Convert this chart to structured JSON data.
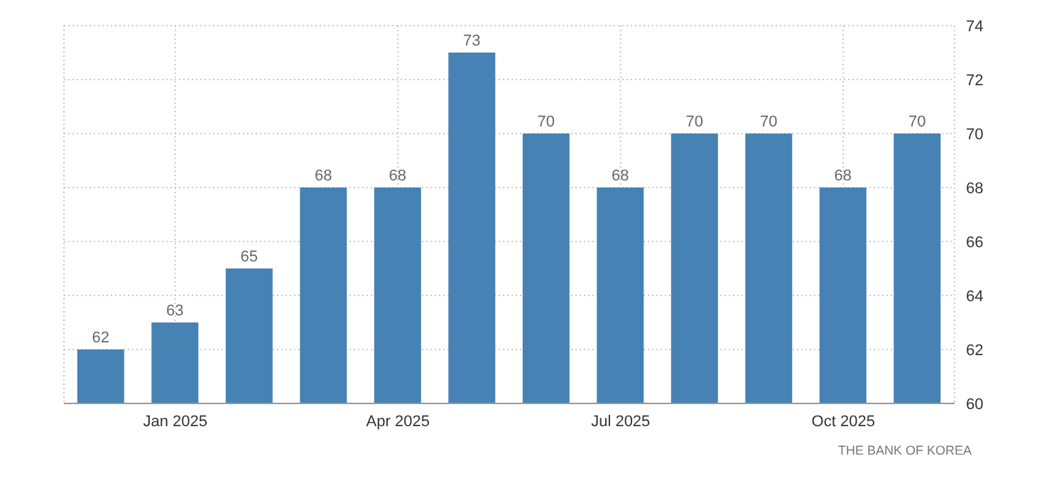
{
  "chart_data": {
    "type": "bar",
    "categories": [
      null,
      "Jan 2025",
      null,
      null,
      "Apr 2025",
      null,
      null,
      "Jul 2025",
      null,
      null,
      "Oct 2025",
      null
    ],
    "values": [
      62,
      63,
      65,
      68,
      68,
      73,
      70,
      68,
      70,
      70,
      68,
      70
    ],
    "color": "#4682b4",
    "ylim": [
      60,
      74
    ],
    "yticks": [
      60,
      62,
      64,
      66,
      68,
      70,
      72,
      74
    ],
    "grid": true,
    "data_labels": true,
    "annotations": [
      "THE BANK OF KOREA"
    ]
  }
}
